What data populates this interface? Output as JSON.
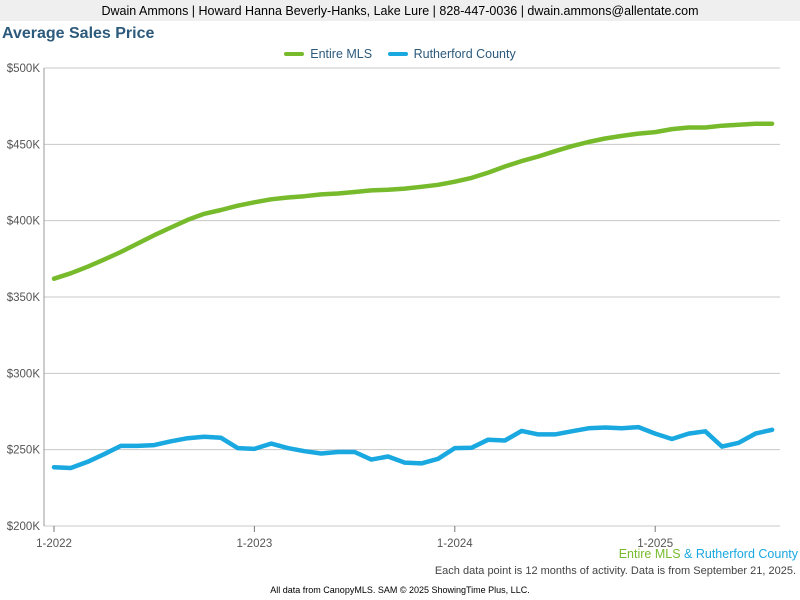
{
  "header": {
    "contact": "Dwain Ammons | Howard Hanna Beverly-Hanks, Lake Lure | 828-447-0036 | dwain.ammons@allentate.com"
  },
  "chart_data": {
    "type": "line",
    "title": "Average Sales Price",
    "xlabel": "",
    "ylabel": "",
    "ylim": [
      200000,
      500000
    ],
    "y_ticks": [
      200000,
      250000,
      300000,
      350000,
      400000,
      450000,
      500000
    ],
    "y_tick_labels": [
      "$200K",
      "$250K",
      "$300K",
      "$350K",
      "$400K",
      "$450K",
      "$500K"
    ],
    "x_tick_labels": [
      "1-2022",
      "1-2023",
      "1-2024",
      "1-2025"
    ],
    "x_tick_index": [
      0,
      12,
      24,
      36
    ],
    "x": [
      "2022-01",
      "2022-02",
      "2022-03",
      "2022-04",
      "2022-05",
      "2022-06",
      "2022-07",
      "2022-08",
      "2022-09",
      "2022-10",
      "2022-11",
      "2022-12",
      "2023-01",
      "2023-02",
      "2023-03",
      "2023-04",
      "2023-05",
      "2023-06",
      "2023-07",
      "2023-08",
      "2023-09",
      "2023-10",
      "2023-11",
      "2023-12",
      "2024-01",
      "2024-02",
      "2024-03",
      "2024-04",
      "2024-05",
      "2024-06",
      "2024-07",
      "2024-08",
      "2024-09",
      "2024-10",
      "2024-11",
      "2024-12",
      "2025-01",
      "2025-02",
      "2025-03",
      "2025-04",
      "2025-05",
      "2025-06",
      "2025-07",
      "2025-08"
    ],
    "grid": true,
    "legend_position": "top-center",
    "series": [
      {
        "name": "Entire MLS",
        "color": "#77bb2d",
        "values": [
          362000,
          365500,
          369800,
          374500,
          379500,
          385000,
          390500,
          395500,
          400500,
          404500,
          407000,
          409800,
          412000,
          414000,
          415200,
          416000,
          417200,
          417800,
          418800,
          419800,
          420200,
          421000,
          422200,
          423500,
          425500,
          428000,
          431500,
          435500,
          439000,
          442000,
          445500,
          448800,
          451500,
          453800,
          455500,
          457000,
          458000,
          460000,
          461000,
          461000,
          462200,
          462800,
          463500,
          463500
        ]
      },
      {
        "name": "Rutherford County",
        "color": "#1aa8e0",
        "values": [
          238500,
          238000,
          242000,
          247000,
          252500,
          252500,
          253000,
          255500,
          257500,
          258500,
          257800,
          251000,
          250500,
          254000,
          251000,
          249000,
          247500,
          248500,
          248500,
          243500,
          245500,
          241500,
          241000,
          244000,
          251000,
          251200,
          256500,
          256000,
          262300,
          260000,
          260000,
          262000,
          264000,
          264500,
          264000,
          264800,
          260500,
          257000,
          260500,
          262000,
          252000,
          254500,
          260500,
          263000
        ]
      }
    ],
    "footer_legend": {
      "first": "Entire MLS",
      "amp": "&",
      "second": "Rutherford County"
    },
    "note": "Each data point is 12 months of activity. Data is from September 21, 2025."
  },
  "credit": "All data from CanopyMLS. SAM © 2025 ShowingTime Plus, LLC."
}
